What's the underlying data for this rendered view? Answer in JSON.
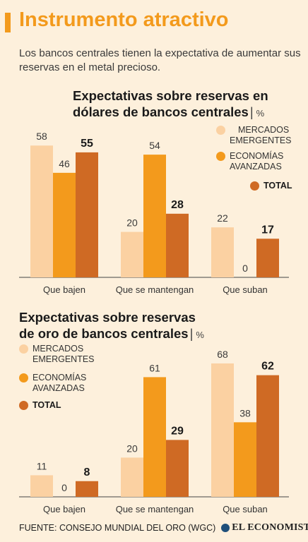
{
  "header": {
    "title": "Instrumento atractivo",
    "subtitle": "Los bancos centrales tienen la expectativa de aumentar sus reservas en el metal precioso."
  },
  "colors": {
    "title": "#f39a1c",
    "background": "#fdf0dc",
    "emergentes": "#fbd1a2",
    "avanzadas": "#f39a1c",
    "total": "#cf6a24",
    "axis": "#444444"
  },
  "legend_labels": {
    "emergentes": "MERCADOS EMERGENTES",
    "emergentes_l1": "MERCADOS",
    "emergentes_l2": "EMERGENTES",
    "avanzadas": "ECONOMÍAS AVANZADAS",
    "avanzadas_l1": "ECONOMÍAS",
    "avanzadas_l2": "AVANZADAS",
    "total": "TOTAL"
  },
  "chart_titles": [
    {
      "line1": "Expectativas sobre reservas en",
      "line2": "dólares de bancos centrales",
      "unit": "%"
    },
    {
      "line1": "Expectativas sobre reservas",
      "line2": "de oro de bancos centrales",
      "unit": "%"
    }
  ],
  "chart_data": [
    {
      "type": "bar",
      "title": "Expectativas sobre reservas en dólares de bancos centrales",
      "unit": "%",
      "categories": [
        "Que bajen",
        "Que se mantengan",
        "Que suban"
      ],
      "series": [
        {
          "name": "MERCADOS EMERGENTES",
          "values": [
            58,
            20,
            22
          ]
        },
        {
          "name": "ECONOMÍAS AVANZADAS",
          "values": [
            46,
            54,
            0
          ]
        },
        {
          "name": "TOTAL",
          "values": [
            55,
            28,
            17
          ]
        }
      ],
      "ylim": [
        0,
        62
      ],
      "grid": false,
      "legend": "top-right"
    },
    {
      "type": "bar",
      "title": "Expectativas sobre reservas de oro de bancos centrales",
      "unit": "%",
      "categories": [
        "Que bajen",
        "Que se mantengan",
        "Que suban"
      ],
      "series": [
        {
          "name": "MERCADOS EMERGENTES",
          "values": [
            11,
            20,
            68
          ]
        },
        {
          "name": "ECONOMÍAS AVANZADAS",
          "values": [
            0,
            61,
            38
          ]
        },
        {
          "name": "TOTAL",
          "values": [
            8,
            29,
            62
          ]
        }
      ],
      "ylim": [
        0,
        72
      ],
      "grid": false,
      "legend": "top-left"
    }
  ],
  "footer": {
    "source": "FUENTE: CONSEJO MUNDIAL DEL ORO (WGC)",
    "logo": "EL ECONOMISTA"
  }
}
